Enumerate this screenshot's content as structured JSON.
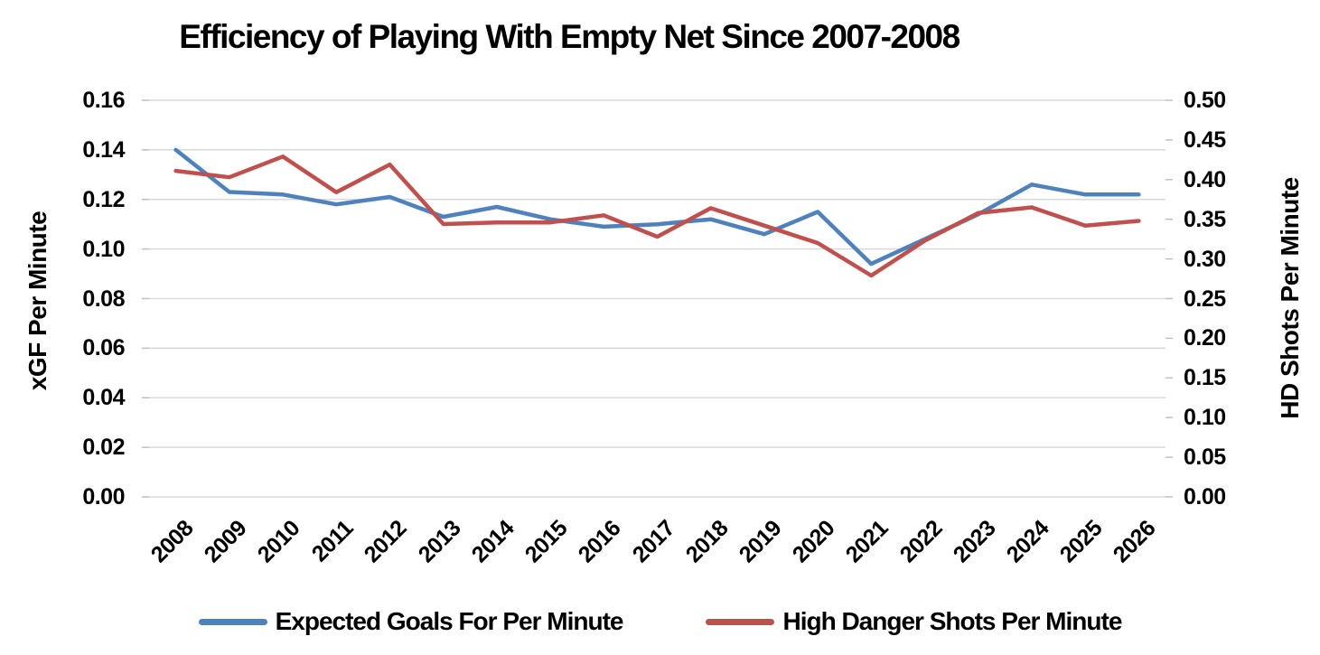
{
  "chart_data": {
    "type": "line",
    "title": "Efficiency of Playing With Empty Net Since 2007-2008",
    "categories": [
      "2008",
      "2009",
      "2010",
      "2011",
      "2012",
      "2013",
      "2014",
      "2015",
      "2016",
      "2017",
      "2018",
      "2019",
      "2020",
      "2021",
      "2022",
      "2023",
      "2024",
      "2025",
      "2026"
    ],
    "left_axis": {
      "label": "xGF Per Minute",
      "min": 0.0,
      "max": 0.16,
      "step": 0.02,
      "ticks": [
        "0.16",
        "0.14",
        "0.12",
        "0.10",
        "0.08",
        "0.06",
        "0.04",
        "0.02",
        "0.00"
      ]
    },
    "right_axis": {
      "label": "HD Shots Per Minute",
      "min": 0.0,
      "max": 0.5,
      "step": 0.05,
      "ticks": [
        "0.50",
        "0.45",
        "0.40",
        "0.35",
        "0.30",
        "0.25",
        "0.20",
        "0.15",
        "0.10",
        "0.05",
        "0.00"
      ]
    },
    "series": [
      {
        "name": "Expected Goals For Per Minute",
        "axis": "left",
        "color": "#4F81BD",
        "values": [
          0.14,
          0.123,
          0.122,
          0.118,
          0.121,
          0.113,
          0.117,
          0.112,
          0.109,
          0.11,
          0.112,
          0.106,
          0.115,
          0.094,
          0.104,
          0.114,
          0.126,
          0.122,
          0.122
        ]
      },
      {
        "name": "High Danger Shots Per Minute",
        "axis": "right",
        "color": "#C0504D",
        "values": [
          0.411,
          0.403,
          0.429,
          0.384,
          0.419,
          0.344,
          0.346,
          0.346,
          0.355,
          0.328,
          0.364,
          0.342,
          0.32,
          0.279,
          0.323,
          0.358,
          0.365,
          0.342,
          0.348
        ]
      }
    ],
    "grid": true,
    "grid_color": "#D9D9D9",
    "legend_position": "bottom"
  }
}
